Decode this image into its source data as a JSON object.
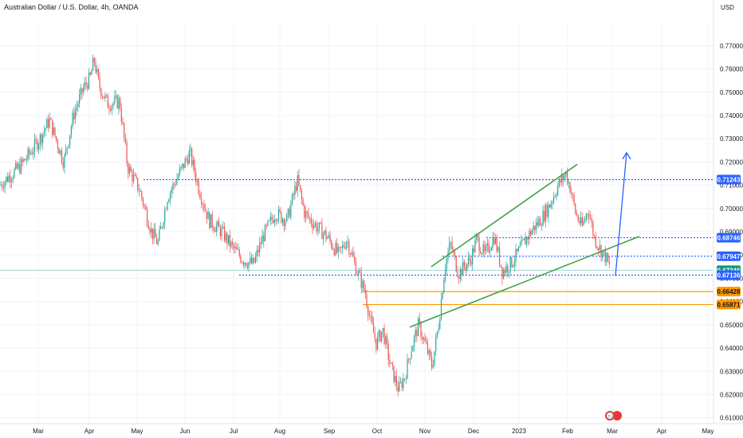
{
  "header": {
    "symbol_title": "Australian Dollar / U.S. Dollar, 4h, OANDA",
    "currency": "USD"
  },
  "chart_data": {
    "type": "candlestick",
    "instrument": "AUDUSD",
    "timeframe": "4h",
    "x_ticks": [
      "Mar",
      "Apr",
      "May",
      "Jun",
      "Jul",
      "Aug",
      "Sep",
      "Oct",
      "Nov",
      "Dec",
      "2023",
      "Feb",
      "Mar",
      "Apr",
      "May"
    ],
    "y_ticks": [
      "0.77000",
      "0.76000",
      "0.75000",
      "0.74000",
      "0.73000",
      "0.72000",
      "0.71000",
      "0.70000",
      "0.69000",
      "0.68000",
      "0.67000",
      "0.66000",
      "0.65000",
      "0.64000",
      "0.63000",
      "0.62000",
      "0.61000"
    ],
    "ylim": [
      0.6075,
      0.7804
    ],
    "price_path": [
      [
        0,
        0.71
      ],
      [
        12,
        0.714
      ],
      [
        25,
        0.718
      ],
      [
        38,
        0.724
      ],
      [
        50,
        0.73
      ],
      [
        62,
        0.738
      ],
      [
        70,
        0.73
      ],
      [
        80,
        0.72
      ],
      [
        92,
        0.74
      ],
      [
        105,
        0.752
      ],
      [
        113,
        0.756
      ],
      [
        118,
        0.764
      ],
      [
        124,
        0.753
      ],
      [
        135,
        0.745
      ],
      [
        150,
        0.746
      ],
      [
        160,
        0.718
      ],
      [
        175,
        0.708
      ],
      [
        190,
        0.69
      ],
      [
        198,
        0.685
      ],
      [
        210,
        0.705
      ],
      [
        225,
        0.715
      ],
      [
        238,
        0.724
      ],
      [
        250,
        0.708
      ],
      [
        262,
        0.695
      ],
      [
        278,
        0.69
      ],
      [
        292,
        0.683
      ],
      [
        305,
        0.678
      ],
      [
        318,
        0.676
      ],
      [
        330,
        0.688
      ],
      [
        345,
        0.698
      ],
      [
        360,
        0.695
      ],
      [
        373,
        0.712
      ],
      [
        382,
        0.698
      ],
      [
        395,
        0.693
      ],
      [
        410,
        0.688
      ],
      [
        425,
        0.68
      ],
      [
        435,
        0.687
      ],
      [
        445,
        0.676
      ],
      [
        458,
        0.664
      ],
      [
        465,
        0.651
      ],
      [
        472,
        0.642
      ],
      [
        480,
        0.648
      ],
      [
        490,
        0.632
      ],
      [
        500,
        0.622
      ],
      [
        508,
        0.628
      ],
      [
        515,
        0.639
      ],
      [
        525,
        0.65
      ],
      [
        535,
        0.64
      ],
      [
        542,
        0.632
      ],
      [
        550,
        0.65
      ],
      [
        558,
        0.675
      ],
      [
        565,
        0.685
      ],
      [
        575,
        0.672
      ],
      [
        590,
        0.678
      ],
      [
        598,
        0.687
      ],
      [
        608,
        0.68
      ],
      [
        620,
        0.688
      ],
      [
        630,
        0.673
      ],
      [
        640,
        0.676
      ],
      [
        650,
        0.681
      ],
      [
        660,
        0.687
      ],
      [
        670,
        0.692
      ],
      [
        680,
        0.696
      ],
      [
        690,
        0.702
      ],
      [
        700,
        0.71
      ],
      [
        710,
        0.715
      ],
      [
        716,
        0.708
      ],
      [
        722,
        0.698
      ],
      [
        730,
        0.692
      ],
      [
        738,
        0.7
      ],
      [
        745,
        0.688
      ],
      [
        752,
        0.683
      ],
      [
        760,
        0.679
      ],
      [
        766,
        0.673
      ]
    ],
    "levels": [
      {
        "value": 0.71243,
        "label": "0.71243",
        "color": "#2962ff",
        "style": "dotted",
        "tag_bg": "#2962ff"
      },
      {
        "value": 0.68746,
        "label": "0.68746",
        "color": "#2962ff",
        "style": "dotted",
        "tag_bg": "#2962ff"
      },
      {
        "value": 0.67947,
        "label": "0.67947",
        "color": "#2962ff",
        "style": "dotted",
        "tag_bg": "#2962ff"
      },
      {
        "value": 0.67346,
        "label": "0.67346",
        "color": "#089981",
        "style": "none",
        "tag_bg": "#089981"
      },
      {
        "value": 0.67136,
        "label": "0.67136",
        "color": "#2962ff",
        "style": "dotted",
        "tag_bg": "#2962ff"
      },
      {
        "value": 0.66428,
        "label": "0.66428",
        "color": "#ff9800",
        "style": "solid",
        "tag_bg": "#ff9800"
      },
      {
        "value": 0.65871,
        "label": "0.65871",
        "color": "#ff9800",
        "style": "solid",
        "tag_bg": "#ff9800"
      }
    ],
    "trend_lines": [
      {
        "from": [
          541,
          0.675
        ],
        "to": [
          724,
          0.719
        ],
        "color": "#43a047"
      },
      {
        "from": [
          514,
          0.649
        ],
        "to": [
          802,
          0.688
        ],
        "color": "#43a047"
      }
    ],
    "projection_arrow": {
      "from": [
        772,
        0.671
      ],
      "to": [
        786,
        0.724
      ],
      "color": "#2962ff"
    },
    "colors": {
      "up": "#26a69a",
      "down": "#ef5350",
      "grid": "#f0f3fa"
    },
    "watermark": "TV"
  }
}
